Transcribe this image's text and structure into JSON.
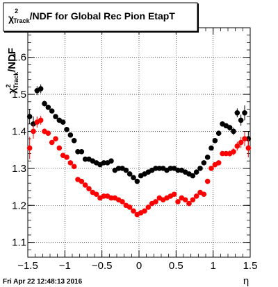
{
  "chart_data": {
    "type": "scatter",
    "title_prefix": "χ",
    "title_sup": "2",
    "title_sub": "Track",
    "title_rest": "/NDF for Global Rec Pion EtapT",
    "ylabel_prefix": "χ",
    "ylabel_sup": "2",
    "ylabel_sub": "Track",
    "ylabel_rest": "/NDF",
    "xlabel": "η",
    "timestamp": "Fri Apr 22 12:48:13 2016",
    "xlim": [
      -1.5,
      1.5
    ],
    "ylim": [
      1.06,
      1.68
    ],
    "grid": true,
    "x_ticks": [
      -1.5,
      -1,
      -0.5,
      0,
      0.5,
      1,
      1.5
    ],
    "x_tick_labels": [
      "−1.5",
      "−1",
      "−0.5",
      "0",
      "0.5",
      "1",
      "1.5"
    ],
    "y_ticks": [
      1.1,
      1.2,
      1.3,
      1.4,
      1.5,
      1.6
    ],
    "y_tick_labels": [
      "1.1",
      "1.2",
      "1.3",
      "1.4",
      "1.5",
      "1.6"
    ],
    "series": [
      {
        "color": "#000000",
        "x": [
          -1.475,
          -1.425,
          -1.375,
          -1.325,
          -1.275,
          -1.225,
          -1.175,
          -1.125,
          -1.075,
          -1.025,
          -0.975,
          -0.925,
          -0.875,
          -0.825,
          -0.775,
          -0.725,
          -0.675,
          -0.625,
          -0.575,
          -0.525,
          -0.475,
          -0.425,
          -0.375,
          -0.325,
          -0.275,
          -0.225,
          -0.175,
          -0.125,
          -0.075,
          -0.025,
          0.025,
          0.075,
          0.125,
          0.175,
          0.225,
          0.275,
          0.325,
          0.375,
          0.425,
          0.475,
          0.525,
          0.575,
          0.625,
          0.675,
          0.725,
          0.775,
          0.825,
          0.875,
          0.925,
          0.975,
          1.025,
          1.075,
          1.125,
          1.175,
          1.225,
          1.275,
          1.325,
          1.375,
          1.425,
          1.475
        ],
        "y": [
          1.44,
          1.42,
          1.51,
          1.515,
          1.475,
          1.465,
          1.455,
          1.44,
          1.43,
          1.425,
          1.405,
          1.39,
          1.375,
          1.345,
          1.345,
          1.325,
          1.325,
          1.32,
          1.315,
          1.31,
          1.315,
          1.315,
          1.32,
          1.295,
          1.3,
          1.3,
          1.295,
          1.285,
          1.275,
          1.265,
          1.28,
          1.285,
          1.29,
          1.295,
          1.3,
          1.3,
          1.3,
          1.295,
          1.3,
          1.3,
          1.295,
          1.295,
          1.29,
          1.285,
          1.28,
          1.29,
          1.3,
          1.315,
          1.33,
          1.355,
          1.375,
          1.395,
          1.42,
          1.415,
          1.41,
          1.4,
          1.45,
          1.43,
          1.45,
          1.38
        ],
        "err": [
          0.02,
          0.02,
          0.012,
          0.012,
          0.008,
          0.006,
          0.005,
          0.005,
          0.005,
          0.005,
          0.005,
          0.005,
          0.005,
          0.005,
          0.005,
          0.005,
          0.005,
          0.005,
          0.005,
          0.005,
          0.005,
          0.005,
          0.005,
          0.005,
          0.005,
          0.005,
          0.005,
          0.005,
          0.005,
          0.005,
          0.005,
          0.005,
          0.005,
          0.005,
          0.005,
          0.005,
          0.005,
          0.005,
          0.005,
          0.005,
          0.005,
          0.005,
          0.005,
          0.005,
          0.005,
          0.005,
          0.005,
          0.005,
          0.005,
          0.005,
          0.005,
          0.005,
          0.005,
          0.006,
          0.008,
          0.01,
          0.012,
          0.015,
          0.02,
          0.02
        ]
      },
      {
        "color": "#ff0000",
        "x": [
          -1.475,
          -1.425,
          -1.375,
          -1.325,
          -1.275,
          -1.225,
          -1.175,
          -1.125,
          -1.075,
          -1.025,
          -0.975,
          -0.925,
          -0.875,
          -0.825,
          -0.775,
          -0.725,
          -0.675,
          -0.625,
          -0.575,
          -0.525,
          -0.475,
          -0.425,
          -0.375,
          -0.325,
          -0.275,
          -0.225,
          -0.175,
          -0.125,
          -0.075,
          -0.025,
          0.025,
          0.075,
          0.125,
          0.175,
          0.225,
          0.275,
          0.325,
          0.375,
          0.425,
          0.475,
          0.525,
          0.575,
          0.625,
          0.675,
          0.725,
          0.775,
          0.825,
          0.875,
          0.925,
          0.975,
          1.025,
          1.075,
          1.125,
          1.175,
          1.225,
          1.275,
          1.325,
          1.375,
          1.425,
          1.475
        ],
        "y": [
          1.355,
          1.4,
          1.425,
          1.43,
          1.4,
          1.395,
          1.37,
          1.38,
          1.355,
          1.335,
          1.33,
          1.315,
          1.305,
          1.27,
          1.265,
          1.255,
          1.245,
          1.235,
          1.23,
          1.22,
          1.225,
          1.225,
          1.22,
          1.22,
          1.215,
          1.21,
          1.2,
          1.195,
          1.185,
          1.175,
          1.18,
          1.185,
          1.195,
          1.205,
          1.21,
          1.22,
          1.215,
          1.22,
          1.225,
          1.23,
          1.21,
          1.22,
          1.215,
          1.205,
          1.215,
          1.225,
          1.235,
          1.23,
          1.265,
          1.3,
          1.31,
          1.315,
          1.34,
          1.34,
          1.34,
          1.345,
          1.36,
          1.37,
          1.38,
          1.355
        ],
        "err": [
          0.03,
          0.02,
          0.015,
          0.012,
          0.008,
          0.006,
          0.005,
          0.005,
          0.005,
          0.005,
          0.005,
          0.005,
          0.005,
          0.005,
          0.005,
          0.005,
          0.005,
          0.005,
          0.005,
          0.005,
          0.005,
          0.005,
          0.005,
          0.005,
          0.005,
          0.005,
          0.005,
          0.005,
          0.005,
          0.005,
          0.005,
          0.005,
          0.005,
          0.005,
          0.005,
          0.005,
          0.005,
          0.005,
          0.005,
          0.005,
          0.005,
          0.005,
          0.005,
          0.005,
          0.005,
          0.005,
          0.005,
          0.005,
          0.005,
          0.005,
          0.005,
          0.005,
          0.005,
          0.006,
          0.008,
          0.01,
          0.012,
          0.015,
          0.02,
          0.025
        ]
      }
    ]
  }
}
